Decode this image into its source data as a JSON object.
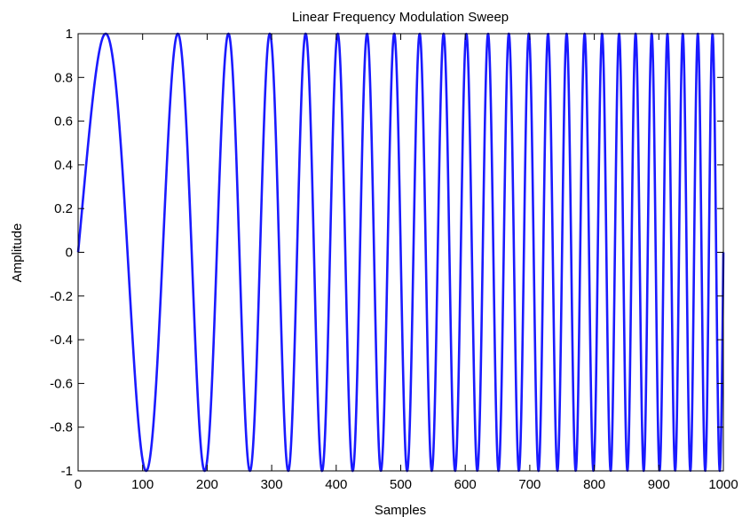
{
  "chart_data": {
    "type": "line",
    "title": "Linear Frequency Modulation Sweep",
    "xlabel": "Samples",
    "ylabel": "Amplitude",
    "xlim": [
      0,
      1000
    ],
    "ylim": [
      -1,
      1
    ],
    "xticks": [
      0,
      100,
      200,
      300,
      400,
      500,
      600,
      700,
      800,
      900,
      1000
    ],
    "yticks": [
      -1,
      -0.8,
      -0.6,
      -0.4,
      -0.2,
      0,
      0.2,
      0.4,
      0.6,
      0.8,
      1
    ],
    "xtick_labels": [
      "0",
      "100",
      "200",
      "300",
      "400",
      "500",
      "600",
      "700",
      "800",
      "900",
      "1000"
    ],
    "ytick_labels": [
      "-1",
      "-0.8",
      "-0.6",
      "-0.4",
      "-0.2",
      "0",
      "0.2",
      "0.4",
      "0.6",
      "0.8",
      "1"
    ],
    "grid": false,
    "series": [
      {
        "color": "#1a1aff",
        "signal": "sin(2*pi*(f0*n + k*n^2/2))",
        "f0": 0.005,
        "k": 4e-05,
        "n_start": 0,
        "n_end": 1000
      }
    ]
  }
}
